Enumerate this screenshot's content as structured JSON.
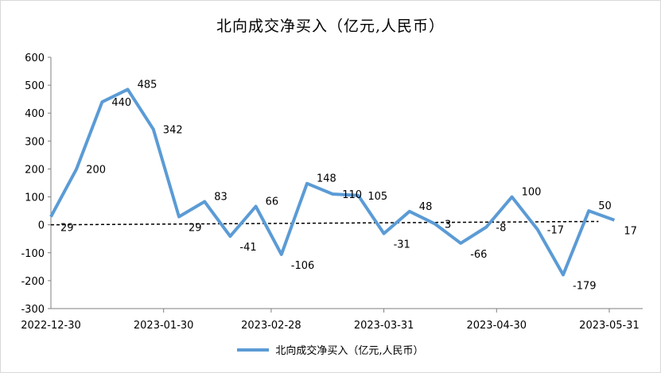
{
  "chart_data": {
    "type": "line",
    "title": "北向成交净买入（亿元,人民币）",
    "xlabel": "",
    "ylabel": "",
    "ylim": [
      -300,
      600
    ],
    "yticks": [
      600,
      500,
      400,
      300,
      200,
      100,
      0,
      -100,
      -200,
      -300
    ],
    "xtick_labels": [
      "2022-12-30",
      "2023-01-30",
      "2023-02-28",
      "2023-03-31",
      "2023-04-30",
      "2023-05-31"
    ],
    "legend_position": "bottom",
    "grid": false,
    "series": [
      {
        "name": "北向成交净买入（亿元,人民币）",
        "color": "#5b9bd5",
        "values": [
          29,
          200,
          440,
          485,
          342,
          29,
          83,
          -41,
          66,
          -106,
          148,
          110,
          105,
          -31,
          48,
          3,
          -66,
          -8,
          100,
          -17,
          -179,
          50,
          17
        ],
        "labels": [
          "29",
          "200",
          "440",
          "485",
          "342",
          "29",
          "83",
          "-41",
          "66",
          "-106",
          "148",
          "110",
          "105",
          "-31",
          "48",
          "3",
          "-66",
          "-8",
          "100",
          "-17",
          "-179",
          "50",
          "17"
        ]
      }
    ],
    "reference_line": {
      "style": "dashed",
      "color": "#000000",
      "y_start": 0,
      "y_end": 12
    }
  }
}
